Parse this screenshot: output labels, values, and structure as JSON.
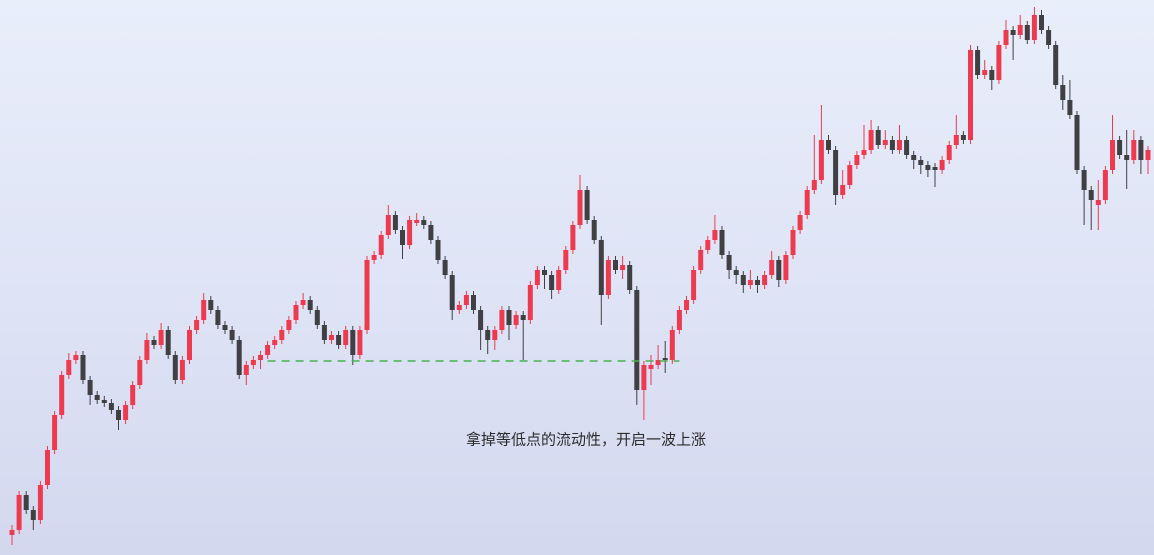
{
  "chart_data": {
    "type": "candlestick",
    "annotation": "拿掉等低点的流动性，开启一波上涨",
    "up_color": "#ee3a4e",
    "down_color": "#3f3f44",
    "ylim": [
      0,
      555
    ],
    "reference_line": {
      "value": 194,
      "from_index": 36,
      "to_index": 94,
      "color": "#4caf50"
    },
    "candles": [
      [
        20,
        30,
        10,
        25
      ],
      [
        25,
        64,
        21,
        60
      ],
      [
        60,
        64,
        41,
        45
      ],
      [
        45,
        49,
        25,
        35
      ],
      [
        35,
        74,
        31,
        70
      ],
      [
        70,
        109,
        66,
        105
      ],
      [
        105,
        144,
        101,
        140
      ],
      [
        140,
        184,
        136,
        180
      ],
      [
        180,
        202,
        176,
        195
      ],
      [
        195,
        204,
        191,
        200
      ],
      [
        200,
        204,
        171,
        175
      ],
      [
        175,
        179,
        150,
        160
      ],
      [
        160,
        164,
        151,
        155
      ],
      [
        155,
        159,
        148,
        152
      ],
      [
        152,
        156,
        141,
        145
      ],
      [
        145,
        149,
        125,
        135
      ],
      [
        135,
        154,
        131,
        150
      ],
      [
        150,
        174,
        146,
        170
      ],
      [
        170,
        199,
        166,
        195
      ],
      [
        195,
        222,
        191,
        215
      ],
      [
        215,
        219,
        206,
        210
      ],
      [
        210,
        232,
        206,
        225
      ],
      [
        225,
        229,
        196,
        200
      ],
      [
        200,
        204,
        171,
        175
      ],
      [
        175,
        199,
        171,
        195
      ],
      [
        195,
        229,
        191,
        225
      ],
      [
        225,
        239,
        221,
        235
      ],
      [
        235,
        262,
        231,
        255
      ],
      [
        255,
        259,
        241,
        245
      ],
      [
        245,
        249,
        226,
        230
      ],
      [
        230,
        234,
        221,
        225
      ],
      [
        225,
        229,
        211,
        215
      ],
      [
        215,
        219,
        176,
        180
      ],
      [
        180,
        194,
        170,
        190
      ],
      [
        190,
        199,
        186,
        195
      ],
      [
        195,
        204,
        186,
        200
      ],
      [
        200,
        214,
        196,
        210
      ],
      [
        210,
        219,
        206,
        215
      ],
      [
        215,
        229,
        211,
        225
      ],
      [
        225,
        239,
        221,
        235
      ],
      [
        235,
        254,
        231,
        250
      ],
      [
        250,
        262,
        246,
        255
      ],
      [
        255,
        259,
        241,
        245
      ],
      [
        245,
        249,
        226,
        230
      ],
      [
        230,
        234,
        211,
        215
      ],
      [
        215,
        224,
        211,
        220
      ],
      [
        220,
        224,
        206,
        210
      ],
      [
        210,
        229,
        206,
        225
      ],
      [
        225,
        229,
        190,
        200
      ],
      [
        200,
        229,
        196,
        225
      ],
      [
        225,
        299,
        221,
        295
      ],
      [
        295,
        304,
        291,
        300
      ],
      [
        300,
        324,
        296,
        320
      ],
      [
        320,
        350,
        316,
        340
      ],
      [
        340,
        344,
        321,
        325
      ],
      [
        325,
        329,
        296,
        310
      ],
      [
        310,
        339,
        306,
        335
      ],
      [
        332,
        342,
        329,
        335
      ],
      [
        335,
        339,
        326,
        330
      ],
      [
        330,
        334,
        311,
        315
      ],
      [
        315,
        319,
        291,
        295
      ],
      [
        295,
        299,
        276,
        280
      ],
      [
        280,
        284,
        235,
        245
      ],
      [
        245,
        254,
        241,
        250
      ],
      [
        250,
        264,
        246,
        260
      ],
      [
        260,
        264,
        241,
        245
      ],
      [
        245,
        249,
        205,
        225
      ],
      [
        225,
        229,
        201,
        215
      ],
      [
        215,
        229,
        205,
        225
      ],
      [
        225,
        249,
        221,
        245
      ],
      [
        245,
        249,
        215,
        230
      ],
      [
        230,
        244,
        226,
        240
      ],
      [
        240,
        244,
        195,
        235
      ],
      [
        235,
        274,
        231,
        270
      ],
      [
        270,
        289,
        266,
        285
      ],
      [
        285,
        289,
        266,
        280
      ],
      [
        280,
        284,
        256,
        265
      ],
      [
        265,
        289,
        261,
        285
      ],
      [
        285,
        309,
        281,
        305
      ],
      [
        305,
        334,
        301,
        330
      ],
      [
        330,
        380,
        326,
        365
      ],
      [
        365,
        369,
        331,
        335
      ],
      [
        335,
        339,
        311,
        315
      ],
      [
        315,
        319,
        230,
        260
      ],
      [
        260,
        299,
        256,
        295
      ],
      [
        295,
        299,
        281,
        285
      ],
      [
        285,
        299,
        276,
        290
      ],
      [
        290,
        294,
        261,
        265
      ],
      [
        265,
        269,
        150,
        165
      ],
      [
        165,
        194,
        135,
        190
      ],
      [
        186,
        200,
        170,
        190
      ],
      [
        190,
        210,
        186,
        195
      ],
      [
        197,
        214,
        182,
        195
      ],
      [
        195,
        229,
        191,
        225
      ],
      [
        225,
        249,
        221,
        245
      ],
      [
        245,
        259,
        241,
        255
      ],
      [
        255,
        289,
        251,
        285
      ],
      [
        285,
        309,
        281,
        305
      ],
      [
        305,
        319,
        301,
        315
      ],
      [
        315,
        340,
        311,
        325
      ],
      [
        325,
        329,
        296,
        300
      ],
      [
        300,
        304,
        276,
        285
      ],
      [
        285,
        289,
        271,
        280
      ],
      [
        280,
        284,
        262,
        270
      ],
      [
        270,
        285,
        266,
        275
      ],
      [
        275,
        279,
        262,
        270
      ],
      [
        270,
        284,
        266,
        280
      ],
      [
        280,
        304,
        276,
        295
      ],
      [
        295,
        299,
        268,
        275
      ],
      [
        275,
        304,
        271,
        300
      ],
      [
        300,
        329,
        296,
        325
      ],
      [
        325,
        344,
        321,
        340
      ],
      [
        340,
        369,
        336,
        365
      ],
      [
        365,
        420,
        361,
        375
      ],
      [
        375,
        450,
        371,
        415
      ],
      [
        415,
        420,
        401,
        405
      ],
      [
        405,
        409,
        350,
        360
      ],
      [
        360,
        385,
        356,
        370
      ],
      [
        370,
        394,
        366,
        390
      ],
      [
        390,
        404,
        386,
        400
      ],
      [
        400,
        430,
        396,
        405
      ],
      [
        405,
        435,
        401,
        425
      ],
      [
        425,
        429,
        406,
        410
      ],
      [
        410,
        425,
        406,
        415
      ],
      [
        415,
        419,
        401,
        405
      ],
      [
        405,
        430,
        401,
        415
      ],
      [
        415,
        419,
        396,
        400
      ],
      [
        400,
        404,
        386,
        395
      ],
      [
        395,
        399,
        381,
        390
      ],
      [
        390,
        394,
        378,
        385
      ],
      [
        388,
        392,
        368,
        385
      ],
      [
        385,
        399,
        381,
        395
      ],
      [
        395,
        414,
        391,
        410
      ],
      [
        410,
        440,
        406,
        420
      ],
      [
        420,
        424,
        411,
        415
      ],
      [
        415,
        510,
        411,
        505
      ],
      [
        505,
        509,
        476,
        480
      ],
      [
        480,
        495,
        476,
        485
      ],
      [
        485,
        489,
        465,
        475
      ],
      [
        475,
        514,
        471,
        510
      ],
      [
        510,
        535,
        506,
        525
      ],
      [
        525,
        529,
        495,
        520
      ],
      [
        520,
        540,
        516,
        530
      ],
      [
        530,
        534,
        511,
        515
      ],
      [
        515,
        548,
        511,
        540
      ],
      [
        540,
        545,
        521,
        525
      ],
      [
        525,
        529,
        506,
        510
      ],
      [
        510,
        514,
        466,
        470
      ],
      [
        470,
        480,
        445,
        455
      ],
      [
        455,
        475,
        436,
        440
      ],
      [
        440,
        444,
        381,
        385
      ],
      [
        385,
        389,
        330,
        365
      ],
      [
        365,
        369,
        325,
        355
      ],
      [
        350,
        375,
        325,
        355
      ],
      [
        355,
        389,
        351,
        385
      ],
      [
        385,
        440,
        381,
        415
      ],
      [
        415,
        419,
        396,
        400
      ],
      [
        400,
        425,
        366,
        395
      ],
      [
        395,
        425,
        391,
        415
      ],
      [
        415,
        419,
        381,
        395
      ],
      [
        395,
        409,
        381,
        405
      ]
    ]
  }
}
